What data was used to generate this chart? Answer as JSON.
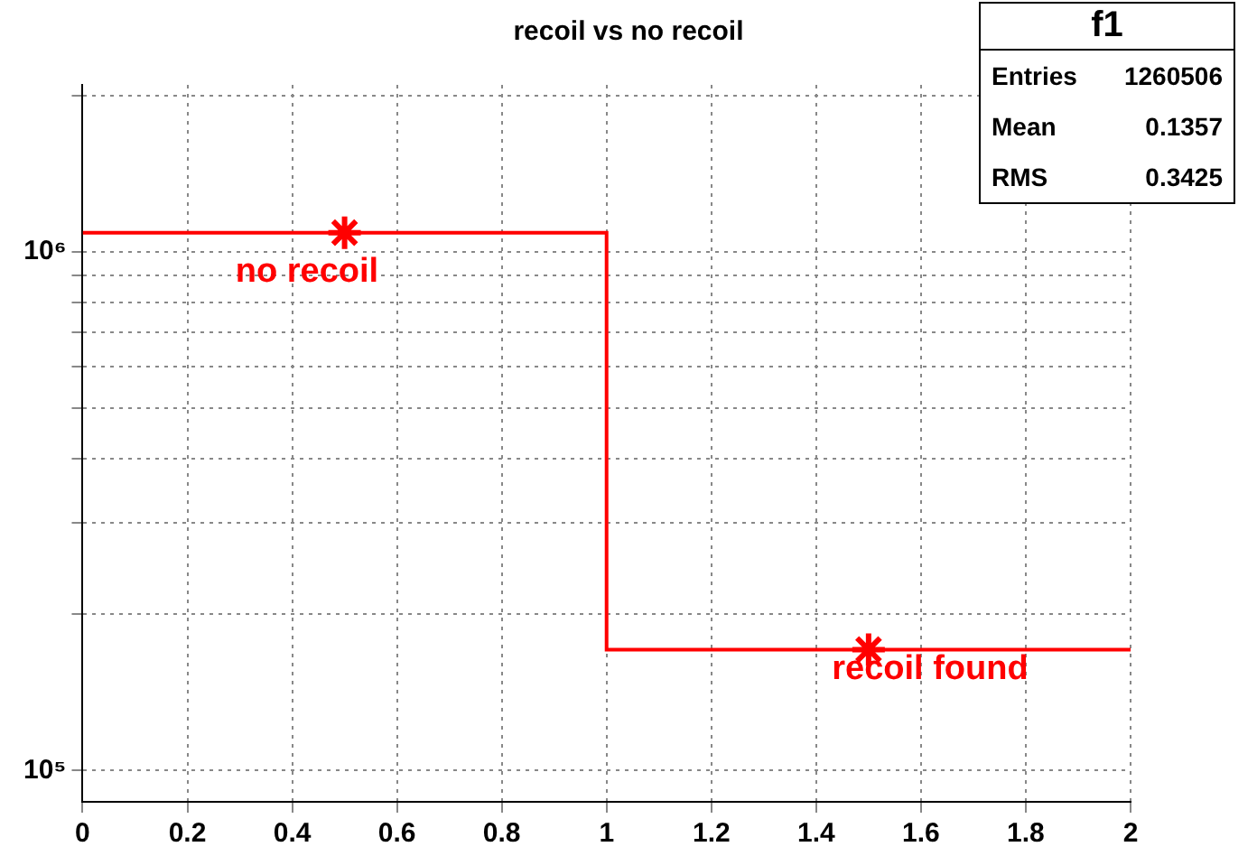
{
  "chart_data": {
    "type": "histogram",
    "title": "recoil vs no recoil",
    "bins": [
      0,
      1,
      2
    ],
    "values": [
      1089456,
      171050
    ],
    "color": "#ff0000",
    "marker": "star",
    "log": "y",
    "grid": true,
    "xlim": [
      0,
      2
    ],
    "xticks": [
      0,
      0.2,
      0.4,
      0.6,
      0.8,
      1,
      1.2,
      1.4,
      1.6,
      1.8,
      2
    ],
    "ylim": [
      87000,
      2100000
    ],
    "yticks": [
      {
        "value": 100000,
        "label": "10⁵"
      },
      {
        "value": 200000,
        "label": null
      },
      {
        "value": 300000,
        "label": null
      },
      {
        "value": 400000,
        "label": null
      },
      {
        "value": 500000,
        "label": null
      },
      {
        "value": 600000,
        "label": null
      },
      {
        "value": 700000,
        "label": null
      },
      {
        "value": 800000,
        "label": null
      },
      {
        "value": 900000,
        "label": null
      },
      {
        "value": 1000000,
        "label": "10⁶"
      },
      {
        "value": 2000000,
        "label": null
      }
    ],
    "annotations": [
      "f1",
      "Entries",
      "1260506",
      "Mean",
      "0.1357",
      "RMS",
      "0.3425",
      "no recoil",
      "recoil found"
    ]
  }
}
